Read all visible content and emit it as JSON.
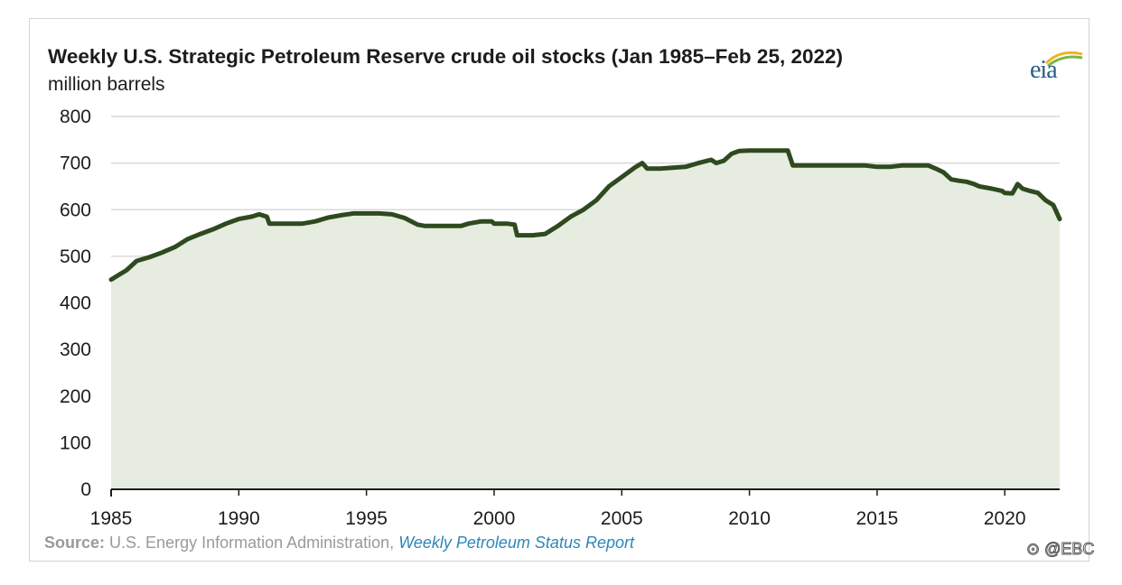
{
  "chart_data": {
    "type": "area",
    "title": "Weekly U.S. Strategic Petroleum Reserve crude oil stocks (Jan 1985–Feb 25, 2022)",
    "subtitle": "million barrels",
    "xlabel": "",
    "ylabel": "",
    "xlim": [
      1985,
      2022.15
    ],
    "ylim": [
      0,
      800
    ],
    "x_ticks": [
      1985,
      1990,
      1995,
      2000,
      2005,
      2010,
      2015,
      2020
    ],
    "y_ticks": [
      0,
      100,
      200,
      300,
      400,
      500,
      600,
      700,
      800
    ],
    "grid": "horizontal",
    "legend": "none",
    "line_color": "#2e4a1e",
    "fill_color": "#e6ece0",
    "series": [
      {
        "x": [
          1985.0,
          1985.3,
          1985.6,
          1986.0,
          1986.5,
          1987.0,
          1987.5,
          1988.0,
          1988.5,
          1989.0,
          1989.5,
          1990.0,
          1990.5,
          1990.8,
          1991.1,
          1991.2,
          1992.0,
          1992.5,
          1993.0,
          1993.5,
          1994.0,
          1994.5,
          1995.0,
          1995.5,
          1996.0,
          1996.5,
          1997.0,
          1997.3,
          1998.0,
          1998.7,
          1999.0,
          1999.5,
          1999.9,
          2000.0,
          2000.5,
          2000.8,
          2000.9,
          2001.5,
          2002.0,
          2002.5,
          2003.0,
          2003.5,
          2004.0,
          2004.5,
          2005.0,
          2005.5,
          2005.8,
          2006.0,
          2006.5,
          2007.0,
          2007.5,
          2008.0,
          2008.5,
          2008.7,
          2009.0,
          2009.3,
          2009.6,
          2010.0,
          2010.5,
          2011.0,
          2011.5,
          2011.7,
          2012.0,
          2013.0,
          2014.0,
          2014.5,
          2015.0,
          2015.5,
          2016.0,
          2017.0,
          2017.3,
          2017.6,
          2017.9,
          2018.2,
          2018.5,
          2018.8,
          2019.0,
          2019.5,
          2019.9,
          2020.0,
          2020.3,
          2020.5,
          2020.7,
          2021.0,
          2021.3,
          2021.6,
          2021.9,
          2022.15
        ],
        "y": [
          450,
          460,
          470,
          490,
          498,
          508,
          520,
          537,
          548,
          558,
          570,
          580,
          585,
          590,
          585,
          570,
          570,
          570,
          575,
          583,
          588,
          592,
          592,
          592,
          590,
          582,
          568,
          565,
          565,
          565,
          570,
          575,
          575,
          570,
          570,
          568,
          545,
          545,
          548,
          565,
          585,
          600,
          620,
          650,
          670,
          690,
          700,
          688,
          688,
          690,
          692,
          700,
          707,
          700,
          705,
          720,
          726,
          727,
          727,
          727,
          727,
          695,
          695,
          695,
          695,
          695,
          692,
          692,
          695,
          695,
          688,
          680,
          665,
          662,
          660,
          655,
          650,
          645,
          640,
          636,
          635,
          655,
          645,
          640,
          636,
          620,
          610,
          580
        ]
      }
    ]
  },
  "source": {
    "label": "Source:",
    "text": "U.S. Energy Information Administration,",
    "link": "Weekly Petroleum Status Report"
  },
  "logo": {
    "text": "eia",
    "icon": "eia-logo-icon"
  },
  "watermark": {
    "text": "⊙ @EBC"
  }
}
